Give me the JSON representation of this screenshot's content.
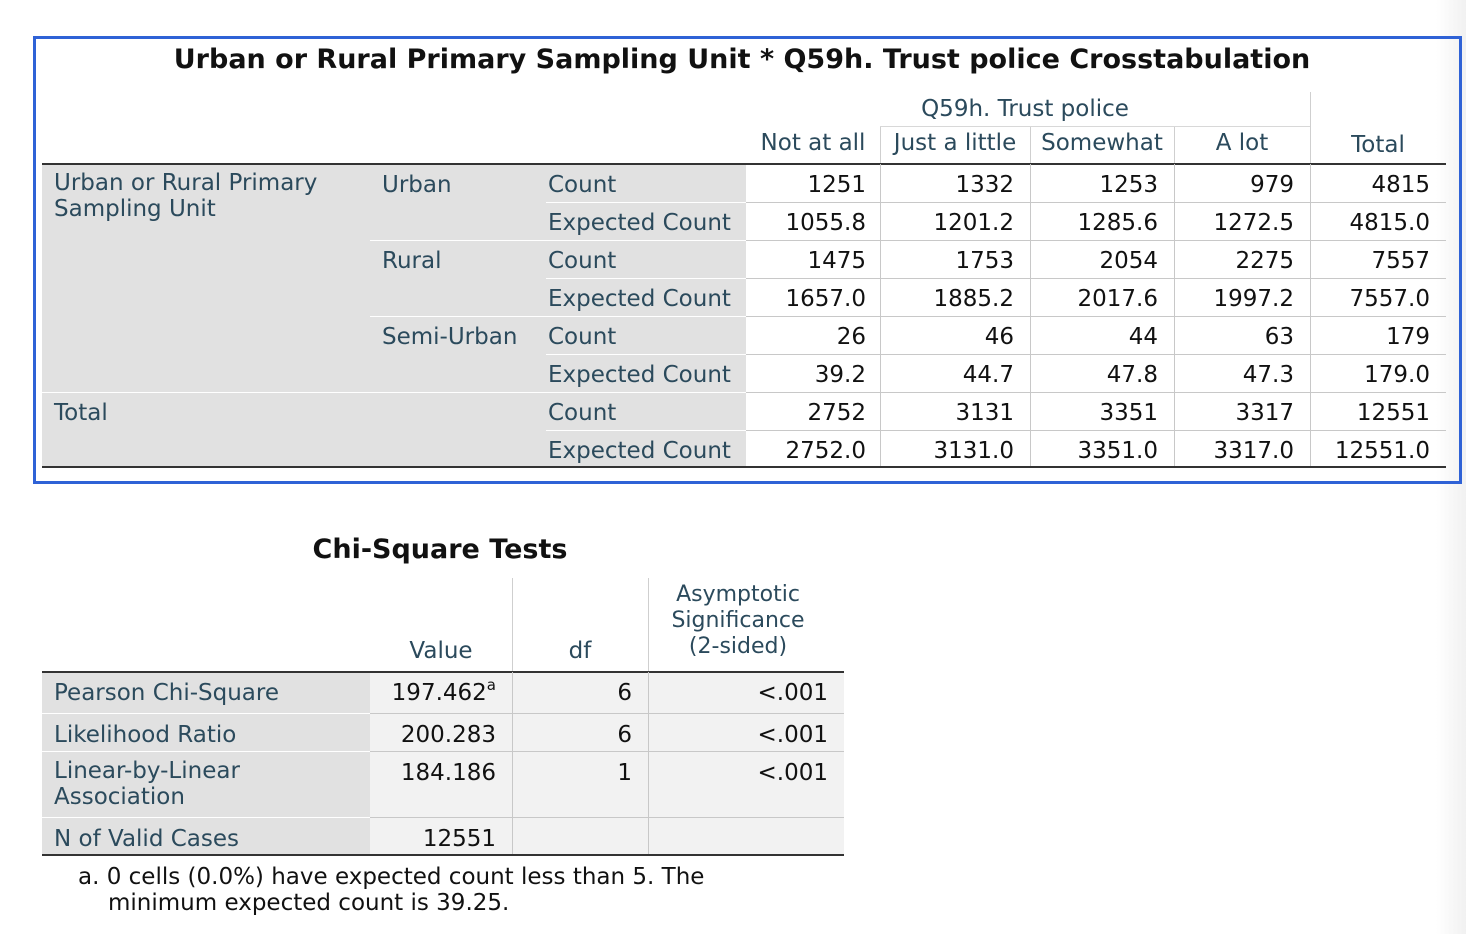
{
  "crosstab": {
    "title": "Urban or Rural Primary Sampling Unit * Q59h. Trust police Crosstabulation",
    "col_group_label": "Q59h. Trust police",
    "col_headers": [
      "Not at all",
      "Just a little",
      "Somewhat",
      "A lot"
    ],
    "total_header": "Total",
    "row_var_label": "Urban or Rural Primary Sampling Unit",
    "stat_labels": {
      "count": "Count",
      "expected": "Expected Count"
    },
    "groups": [
      {
        "label": "Urban",
        "count": [
          "1251",
          "1332",
          "1253",
          "979",
          "4815"
        ],
        "expected": [
          "1055.8",
          "1201.2",
          "1285.6",
          "1272.5",
          "4815.0"
        ]
      },
      {
        "label": "Rural",
        "count": [
          "1475",
          "1753",
          "2054",
          "2275",
          "7557"
        ],
        "expected": [
          "1657.0",
          "1885.2",
          "2017.6",
          "1997.2",
          "7557.0"
        ]
      },
      {
        "label": "Semi-Urban",
        "count": [
          "26",
          "46",
          "44",
          "63",
          "179"
        ],
        "expected": [
          "39.2",
          "44.7",
          "47.8",
          "47.3",
          "179.0"
        ]
      }
    ],
    "total_row": {
      "label": "Total",
      "count": [
        "2752",
        "3131",
        "3351",
        "3317",
        "12551"
      ],
      "expected": [
        "2752.0",
        "3131.0",
        "3351.0",
        "3317.0",
        "12551.0"
      ]
    }
  },
  "chisq": {
    "title": "Chi-Square Tests",
    "headers": {
      "value": "Value",
      "df": "df",
      "sig": [
        "Asymptotic",
        "Significance",
        "(2-sided)"
      ]
    },
    "rows": [
      {
        "label": "Pearson Chi-Square",
        "value": "197.462",
        "sup": "a",
        "df": "6",
        "sig": "<.001"
      },
      {
        "label": "Likelihood Ratio",
        "value": "200.283",
        "df": "6",
        "sig": "<.001"
      },
      {
        "label": "Linear-by-Linear Association",
        "label_lines": [
          "Linear-by-Linear",
          "Association"
        ],
        "value": "184.186",
        "df": "1",
        "sig": "<.001"
      },
      {
        "label": "N of Valid Cases",
        "value": "12551",
        "df": "",
        "sig": ""
      }
    ],
    "footnote": [
      "a. 0 cells (0.0%) have expected count less than 5. The",
      "minimum expected count is 39.25."
    ]
  }
}
